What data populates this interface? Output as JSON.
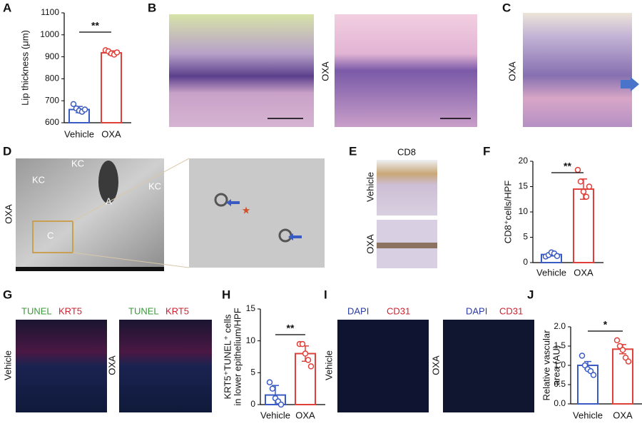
{
  "chart_data": [
    {
      "type": "bar",
      "ylabel": [
        "Lip thickness (μm)"
      ],
      "categories": [
        "Vehicle",
        "OXA"
      ],
      "values": [
        660,
        918
      ],
      "errors": [
        14,
        9
      ],
      "points": [
        [
          685,
          665,
          655,
          650,
          660
        ],
        [
          930,
          925,
          915,
          910,
          920
        ]
      ],
      "colors": [
        "#3b5bc4",
        "#e0403a"
      ],
      "ylim": [
        600,
        1100
      ],
      "yticks": [
        600,
        700,
        800,
        900,
        1000,
        1100
      ],
      "significance": "**"
    },
    {
      "type": "bar",
      "ylabel": [
        "CD8⁺cells/HPF"
      ],
      "categories": [
        "Vehicle",
        "OXA"
      ],
      "values": [
        1.6,
        14.5
      ],
      "errors": [
        0.3,
        2
      ],
      "points": [
        [
          1.2,
          1.5,
          2,
          1.8,
          1.3
        ],
        [
          18.3,
          16,
          14,
          13,
          15
        ]
      ],
      "colors": [
        "#3b5bc4",
        "#e0403a"
      ],
      "ylim": [
        0,
        20
      ],
      "yticks": [
        0,
        5,
        10,
        15,
        20
      ],
      "significance": "**"
    },
    {
      "type": "bar",
      "ylabel": [
        "KRT5⁺TUNEL⁺ cells",
        "in lower epithelium/HPF"
      ],
      "categories": [
        "Vehicle",
        "OXA"
      ],
      "values": [
        1.5,
        8
      ],
      "errors": [
        1.5,
        1.2
      ],
      "points": [
        [
          3.5,
          2.5,
          1,
          0.5,
          0
        ],
        [
          9.5,
          9.5,
          8,
          7,
          6
        ]
      ],
      "colors": [
        "#3b5bc4",
        "#e0403a"
      ],
      "ylim": [
        0,
        15
      ],
      "yticks": [
        0,
        5,
        10,
        15
      ],
      "significance": "**"
    },
    {
      "type": "bar",
      "ylabel": [
        "Relative vascular",
        "area (AU)"
      ],
      "categories": [
        "Vehicle",
        "OXA"
      ],
      "values": [
        1.0,
        1.42
      ],
      "errors": [
        0.1,
        0.12
      ],
      "points": [
        [
          1.25,
          1.0,
          0.9,
          0.85,
          0.75
        ],
        [
          1.65,
          1.5,
          1.4,
          1.2,
          1.1
        ]
      ],
      "colors": [
        "#3b5bc4",
        "#e0403a"
      ],
      "ylim": [
        0,
        2
      ],
      "yticks": [
        {
          "value": 0,
          "label": "0.0"
        },
        {
          "value": 0.5,
          "label": "0.5"
        },
        {
          "value": 1,
          "label": "1.0"
        },
        {
          "value": 1.5,
          "label": "1.5"
        },
        {
          "value": 2,
          "label": "2.0"
        }
      ],
      "significance": "*"
    }
  ],
  "panels": {
    "letters": [
      "A",
      "B",
      "C",
      "D",
      "E",
      "F",
      "G",
      "H",
      "I",
      "J"
    ],
    "B": {
      "group": "OXA"
    },
    "C": {
      "group": "OXA"
    },
    "D": {
      "group": "OXA",
      "labels": [
        "KC",
        "KC",
        "A",
        "KC",
        "C"
      ]
    },
    "E": {
      "stain": "CD8",
      "groups": [
        "Vehicle",
        "OXA"
      ]
    },
    "G": {
      "groups": [
        "Vehicle",
        "OXA"
      ],
      "stains": [
        "TUNEL",
        "KRT5"
      ]
    },
    "I": {
      "groups": [
        "Vehicle",
        "OXA"
      ],
      "stains": [
        "DAPI",
        "CD31"
      ]
    }
  }
}
